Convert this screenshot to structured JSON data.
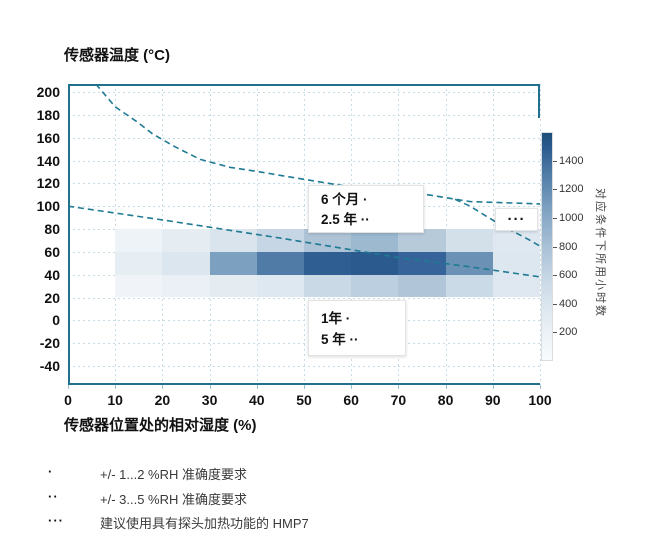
{
  "page": {
    "title": "传感器温度 (°C)",
    "x_axis_title": "传感器位置处的相对湿度 (%)"
  },
  "chart_data": {
    "type": "heatmap",
    "title": "传感器温度 (°C)",
    "xlabel": "传感器位置处的相对湿度 (%)",
    "ylabel": "传感器温度 (°C)",
    "x_ticks": [
      0,
      10,
      20,
      30,
      40,
      50,
      60,
      70,
      80,
      90,
      100
    ],
    "y_ticks": [
      200,
      180,
      160,
      140,
      120,
      100,
      80,
      60,
      40,
      20,
      0,
      -20,
      -40
    ],
    "x_range": [
      0,
      100
    ],
    "y_range": [
      -56,
      207
    ],
    "grid": true,
    "heatmap": {
      "x_edges_percent": [
        0,
        10,
        20,
        30,
        40,
        50,
        60,
        70,
        80,
        90,
        100
      ],
      "rows": [
        {
          "t_range_c": [
            60,
            80
          ],
          "values_est_hours": [
            0,
            80,
            150,
            250,
            380,
            520,
            580,
            470,
            300,
            230
          ],
          "colors": [
            null,
            "#eef3f8",
            "#e5edf3",
            "#d9e4ed",
            "#c7d6e4",
            "#aec3d6",
            "#9db9d0",
            "#b7cada",
            "#d3dfe9",
            "#dfe8f0"
          ]
        },
        {
          "t_range_c": [
            40,
            60
          ],
          "values_est_hours": [
            0,
            170,
            260,
            750,
            1150,
            1400,
            1450,
            1350,
            1000,
            260
          ],
          "colors": [
            null,
            "#e6edf3",
            "#dce6ee",
            "#7ca0c0",
            "#4f7ba6",
            "#2f5f92",
            "#2a5a8e",
            "#35639a",
            "#6b91b4",
            "#dce7ef"
          ]
        },
        {
          "t_range_c": [
            20,
            40
          ],
          "values_est_hours": [
            0,
            70,
            130,
            200,
            260,
            360,
            420,
            480,
            340,
            230
          ],
          "colors": [
            null,
            "#f0f4f8",
            "#eaf0f5",
            "#e4ecf2",
            "#dee8f0",
            "#c9d9e6",
            "#bccfe0",
            "#b0c5d8",
            "#cbdae7",
            "#dfe8f0"
          ]
        }
      ]
    },
    "curves": [
      {
        "name": "upper-limit-curve",
        "style": "dashed",
        "color": "#1f7a93",
        "points": [
          [
            5.9,
            207
          ],
          [
            10,
            187
          ],
          [
            14.6,
            174
          ],
          [
            18,
            163
          ],
          [
            22.7,
            152
          ],
          [
            28,
            141
          ],
          [
            34.3,
            134
          ],
          [
            40.7,
            130
          ],
          [
            46.4,
            126
          ],
          [
            59.7,
            117
          ],
          [
            76.3,
            110
          ],
          [
            85.2,
            104
          ],
          [
            100,
            102
          ]
        ]
      },
      {
        "name": "lower-limit-curve",
        "style": "dashed",
        "color": "#1f7a93",
        "points": [
          [
            0,
            100
          ],
          [
            20,
            88
          ],
          [
            45,
            72
          ],
          [
            70,
            55
          ],
          [
            85,
            47
          ],
          [
            100,
            38
          ]
        ]
      },
      {
        "name": "high-rh-warning-curve",
        "style": "dashed",
        "color": "#1f7a93",
        "points": [
          [
            82,
            106
          ],
          [
            85.2,
            100
          ],
          [
            88.3,
            92
          ],
          [
            91.5,
            84
          ],
          [
            94.7,
            77
          ],
          [
            97.5,
            71
          ],
          [
            100,
            65
          ]
        ]
      }
    ],
    "colorbar": {
      "label": "对应条件下所用小时数",
      "ticks": [
        200,
        400,
        600,
        800,
        1000,
        1200,
        1400
      ],
      "vmin": 0,
      "vmax": 1600,
      "color_low": "#f8fbfd",
      "color_high": "#1f4e79",
      "position": "right"
    },
    "annotations": [
      {
        "id": "six-months",
        "lines": [
          "6 个月 ·",
          "2.5 年 ··"
        ]
      },
      {
        "id": "one-year",
        "lines": [
          "1年 ·",
          "5 年 ··"
        ]
      },
      {
        "id": "probe-heating-dots",
        "lines": [
          "···"
        ]
      }
    ]
  },
  "legend": {
    "items": [
      {
        "bullet": "·",
        "text": "+/- 1...2 %RH 准确度要求"
      },
      {
        "bullet": "··",
        "text": "+/- 3...5 %RH 准确度要求"
      },
      {
        "bullet": "···",
        "text": "建议使用具有探头加热功能的 HMP7"
      }
    ]
  },
  "colors": {
    "frame": "#20708e",
    "grid": "#c6dde8",
    "curve": "#1f7a93",
    "text": "#111111"
  }
}
